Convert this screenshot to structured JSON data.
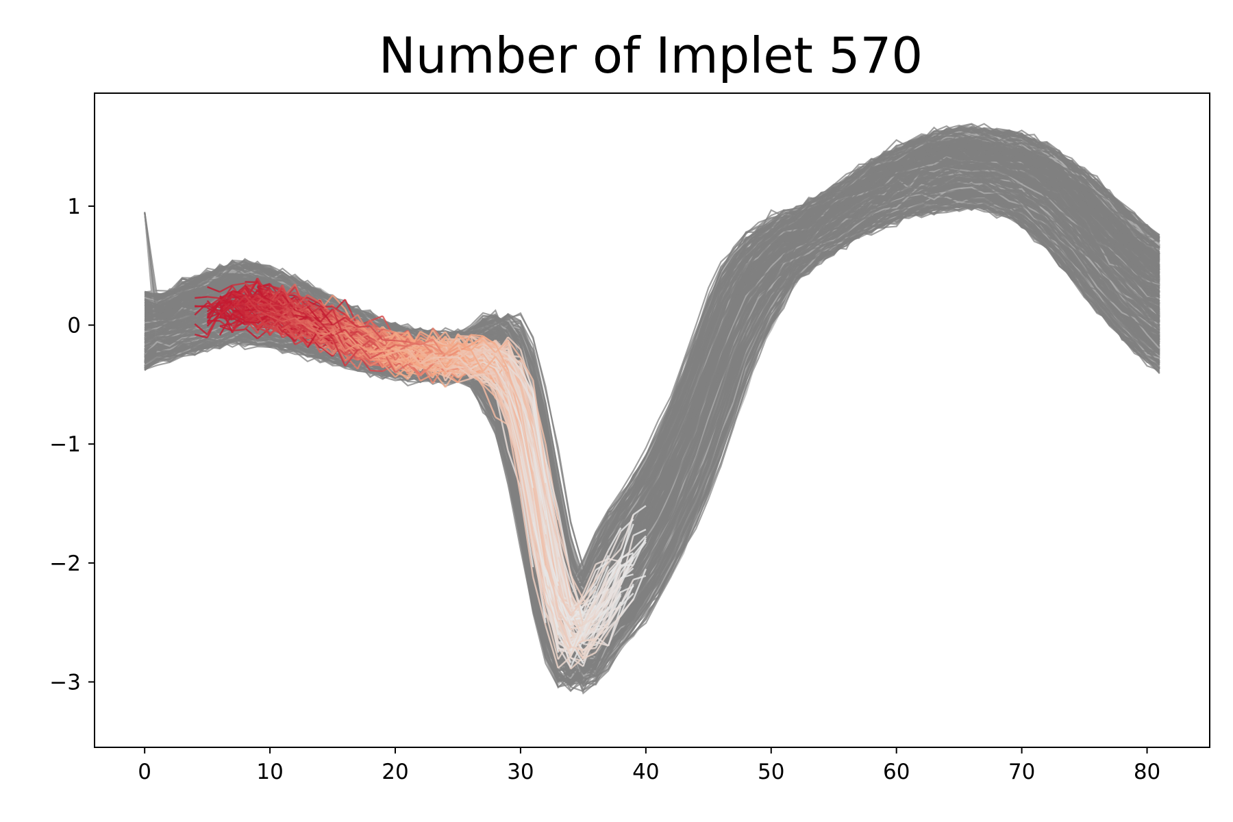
{
  "chart_data": {
    "type": "line",
    "title": "Number of Implet 570",
    "xlabel": "",
    "ylabel": "",
    "xlim": [
      -4,
      85
    ],
    "ylim": [
      -3.55,
      1.95
    ],
    "grid": false,
    "legend": "none",
    "x_ticks": [
      0,
      10,
      20,
      30,
      40,
      50,
      60,
      70,
      80
    ],
    "y_ticks": [
      1,
      0,
      -1,
      -2,
      -3
    ],
    "x_tick_labels": [
      "0",
      "10",
      "20",
      "30",
      "40",
      "50",
      "60",
      "70",
      "80"
    ],
    "y_tick_labels": [
      "1",
      "0",
      "−1",
      "−2",
      "−3"
    ],
    "colors": {
      "background_series": "#808080",
      "background_series_light": "#b0b0b0",
      "highlight_dark": "#c0102a",
      "highlight_mid": "#f4a582",
      "highlight_light": "#e6e6e6"
    },
    "background_series": {
      "name": "",
      "count": 600,
      "x": [
        0,
        1,
        2,
        3,
        4,
        5,
        6,
        7,
        8,
        9,
        10,
        11,
        12,
        13,
        14,
        15,
        16,
        17,
        18,
        19,
        20,
        21,
        22,
        23,
        24,
        25,
        26,
        27,
        28,
        29,
        30,
        31,
        32,
        33,
        34,
        35,
        36,
        37,
        38,
        39,
        40,
        41,
        42,
        43,
        44,
        45,
        46,
        47,
        48,
        49,
        50,
        51,
        52,
        53,
        54,
        55,
        56,
        57,
        58,
        59,
        60,
        61,
        62,
        63,
        64,
        65,
        66,
        67,
        68,
        69,
        70,
        71,
        72,
        73,
        74,
        75,
        76,
        77,
        78,
        79,
        80,
        81
      ],
      "mean": [
        -0.05,
        -0.02,
        0.0,
        0.05,
        0.08,
        0.12,
        0.15,
        0.18,
        0.18,
        0.17,
        0.15,
        0.12,
        0.08,
        0.04,
        0.0,
        -0.04,
        -0.08,
        -0.12,
        -0.16,
        -0.2,
        -0.22,
        -0.24,
        -0.25,
        -0.26,
        -0.27,
        -0.27,
        -0.27,
        -0.28,
        -0.3,
        -0.4,
        -0.7,
        -1.2,
        -1.8,
        -2.3,
        -2.6,
        -2.6,
        -2.45,
        -2.25,
        -2.1,
        -1.95,
        -1.8,
        -1.6,
        -1.4,
        -1.15,
        -0.9,
        -0.6,
        -0.3,
        0.0,
        0.2,
        0.38,
        0.5,
        0.6,
        0.68,
        0.75,
        0.82,
        0.88,
        0.95,
        1.02,
        1.08,
        1.13,
        1.18,
        1.22,
        1.26,
        1.29,
        1.31,
        1.32,
        1.32,
        1.31,
        1.29,
        1.26,
        1.22,
        1.16,
        1.08,
        0.99,
        0.89,
        0.78,
        0.67,
        0.56,
        0.45,
        0.35,
        0.26,
        0.18
      ],
      "half_width": [
        0.3,
        0.28,
        0.28,
        0.3,
        0.32,
        0.32,
        0.33,
        0.34,
        0.34,
        0.34,
        0.33,
        0.32,
        0.31,
        0.3,
        0.28,
        0.27,
        0.26,
        0.25,
        0.24,
        0.23,
        0.22,
        0.21,
        0.2,
        0.2,
        0.2,
        0.2,
        0.22,
        0.3,
        0.4,
        0.5,
        0.6,
        0.6,
        0.6,
        0.55,
        0.5,
        0.45,
        0.45,
        0.5,
        0.55,
        0.55,
        0.55,
        0.55,
        0.55,
        0.55,
        0.55,
        0.55,
        0.55,
        0.5,
        0.45,
        0.4,
        0.35,
        0.32,
        0.3,
        0.28,
        0.27,
        0.27,
        0.27,
        0.28,
        0.29,
        0.3,
        0.31,
        0.32,
        0.33,
        0.33,
        0.34,
        0.34,
        0.34,
        0.34,
        0.35,
        0.36,
        0.38,
        0.41,
        0.44,
        0.47,
        0.5,
        0.53,
        0.55,
        0.57,
        0.58,
        0.58,
        0.58,
        0.58
      ]
    },
    "highlight_series": {
      "name": "",
      "count": 160,
      "x_start_range": [
        4,
        14
      ],
      "segment_length": 26,
      "color_gradient": [
        "#c0102a",
        "#f4a582",
        "#e6e6e6"
      ]
    }
  }
}
